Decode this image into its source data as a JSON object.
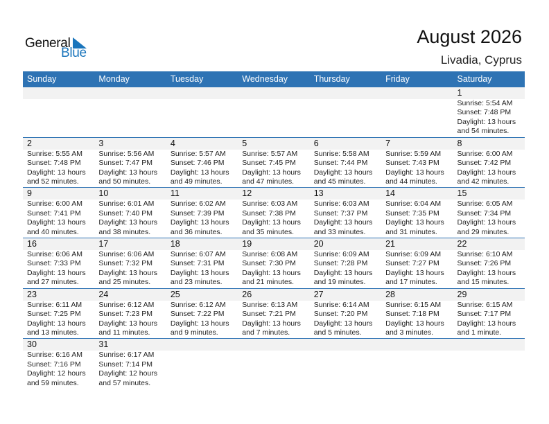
{
  "logo": {
    "line1": "General",
    "line2": "Blue",
    "color": "#1a75bc"
  },
  "header": {
    "title": "August 2026",
    "location": "Livadia, Cyprus"
  },
  "colors": {
    "header_bg": "#2e73b4",
    "day_band": "#f2f2f2"
  },
  "weekdays": [
    "Sunday",
    "Monday",
    "Tuesday",
    "Wednesday",
    "Thursday",
    "Friday",
    "Saturday"
  ],
  "weeks": [
    [
      null,
      null,
      null,
      null,
      null,
      null,
      {
        "day": "1",
        "sunrise": "Sunrise: 5:54 AM",
        "sunset": "Sunset: 7:48 PM",
        "daylight": "Daylight: 13 hours",
        "minutes": "and 54 minutes."
      }
    ],
    [
      {
        "day": "2",
        "sunrise": "Sunrise: 5:55 AM",
        "sunset": "Sunset: 7:48 PM",
        "daylight": "Daylight: 13 hours",
        "minutes": "and 52 minutes."
      },
      {
        "day": "3",
        "sunrise": "Sunrise: 5:56 AM",
        "sunset": "Sunset: 7:47 PM",
        "daylight": "Daylight: 13 hours",
        "minutes": "and 50 minutes."
      },
      {
        "day": "4",
        "sunrise": "Sunrise: 5:57 AM",
        "sunset": "Sunset: 7:46 PM",
        "daylight": "Daylight: 13 hours",
        "minutes": "and 49 minutes."
      },
      {
        "day": "5",
        "sunrise": "Sunrise: 5:57 AM",
        "sunset": "Sunset: 7:45 PM",
        "daylight": "Daylight: 13 hours",
        "minutes": "and 47 minutes."
      },
      {
        "day": "6",
        "sunrise": "Sunrise: 5:58 AM",
        "sunset": "Sunset: 7:44 PM",
        "daylight": "Daylight: 13 hours",
        "minutes": "and 45 minutes."
      },
      {
        "day": "7",
        "sunrise": "Sunrise: 5:59 AM",
        "sunset": "Sunset: 7:43 PM",
        "daylight": "Daylight: 13 hours",
        "minutes": "and 44 minutes."
      },
      {
        "day": "8",
        "sunrise": "Sunrise: 6:00 AM",
        "sunset": "Sunset: 7:42 PM",
        "daylight": "Daylight: 13 hours",
        "minutes": "and 42 minutes."
      }
    ],
    [
      {
        "day": "9",
        "sunrise": "Sunrise: 6:00 AM",
        "sunset": "Sunset: 7:41 PM",
        "daylight": "Daylight: 13 hours",
        "minutes": "and 40 minutes."
      },
      {
        "day": "10",
        "sunrise": "Sunrise: 6:01 AM",
        "sunset": "Sunset: 7:40 PM",
        "daylight": "Daylight: 13 hours",
        "minutes": "and 38 minutes."
      },
      {
        "day": "11",
        "sunrise": "Sunrise: 6:02 AM",
        "sunset": "Sunset: 7:39 PM",
        "daylight": "Daylight: 13 hours",
        "minutes": "and 36 minutes."
      },
      {
        "day": "12",
        "sunrise": "Sunrise: 6:03 AM",
        "sunset": "Sunset: 7:38 PM",
        "daylight": "Daylight: 13 hours",
        "minutes": "and 35 minutes."
      },
      {
        "day": "13",
        "sunrise": "Sunrise: 6:03 AM",
        "sunset": "Sunset: 7:37 PM",
        "daylight": "Daylight: 13 hours",
        "minutes": "and 33 minutes."
      },
      {
        "day": "14",
        "sunrise": "Sunrise: 6:04 AM",
        "sunset": "Sunset: 7:35 PM",
        "daylight": "Daylight: 13 hours",
        "minutes": "and 31 minutes."
      },
      {
        "day": "15",
        "sunrise": "Sunrise: 6:05 AM",
        "sunset": "Sunset: 7:34 PM",
        "daylight": "Daylight: 13 hours",
        "minutes": "and 29 minutes."
      }
    ],
    [
      {
        "day": "16",
        "sunrise": "Sunrise: 6:06 AM",
        "sunset": "Sunset: 7:33 PM",
        "daylight": "Daylight: 13 hours",
        "minutes": "and 27 minutes."
      },
      {
        "day": "17",
        "sunrise": "Sunrise: 6:06 AM",
        "sunset": "Sunset: 7:32 PM",
        "daylight": "Daylight: 13 hours",
        "minutes": "and 25 minutes."
      },
      {
        "day": "18",
        "sunrise": "Sunrise: 6:07 AM",
        "sunset": "Sunset: 7:31 PM",
        "daylight": "Daylight: 13 hours",
        "minutes": "and 23 minutes."
      },
      {
        "day": "19",
        "sunrise": "Sunrise: 6:08 AM",
        "sunset": "Sunset: 7:30 PM",
        "daylight": "Daylight: 13 hours",
        "minutes": "and 21 minutes."
      },
      {
        "day": "20",
        "sunrise": "Sunrise: 6:09 AM",
        "sunset": "Sunset: 7:28 PM",
        "daylight": "Daylight: 13 hours",
        "minutes": "and 19 minutes."
      },
      {
        "day": "21",
        "sunrise": "Sunrise: 6:09 AM",
        "sunset": "Sunset: 7:27 PM",
        "daylight": "Daylight: 13 hours",
        "minutes": "and 17 minutes."
      },
      {
        "day": "22",
        "sunrise": "Sunrise: 6:10 AM",
        "sunset": "Sunset: 7:26 PM",
        "daylight": "Daylight: 13 hours",
        "minutes": "and 15 minutes."
      }
    ],
    [
      {
        "day": "23",
        "sunrise": "Sunrise: 6:11 AM",
        "sunset": "Sunset: 7:25 PM",
        "daylight": "Daylight: 13 hours",
        "minutes": "and 13 minutes."
      },
      {
        "day": "24",
        "sunrise": "Sunrise: 6:12 AM",
        "sunset": "Sunset: 7:23 PM",
        "daylight": "Daylight: 13 hours",
        "minutes": "and 11 minutes."
      },
      {
        "day": "25",
        "sunrise": "Sunrise: 6:12 AM",
        "sunset": "Sunset: 7:22 PM",
        "daylight": "Daylight: 13 hours",
        "minutes": "and 9 minutes."
      },
      {
        "day": "26",
        "sunrise": "Sunrise: 6:13 AM",
        "sunset": "Sunset: 7:21 PM",
        "daylight": "Daylight: 13 hours",
        "minutes": "and 7 minutes."
      },
      {
        "day": "27",
        "sunrise": "Sunrise: 6:14 AM",
        "sunset": "Sunset: 7:20 PM",
        "daylight": "Daylight: 13 hours",
        "minutes": "and 5 minutes."
      },
      {
        "day": "28",
        "sunrise": "Sunrise: 6:15 AM",
        "sunset": "Sunset: 7:18 PM",
        "daylight": "Daylight: 13 hours",
        "minutes": "and 3 minutes."
      },
      {
        "day": "29",
        "sunrise": "Sunrise: 6:15 AM",
        "sunset": "Sunset: 7:17 PM",
        "daylight": "Daylight: 13 hours",
        "minutes": "and 1 minute."
      }
    ],
    [
      {
        "day": "30",
        "sunrise": "Sunrise: 6:16 AM",
        "sunset": "Sunset: 7:16 PM",
        "daylight": "Daylight: 12 hours",
        "minutes": "and 59 minutes."
      },
      {
        "day": "31",
        "sunrise": "Sunrise: 6:17 AM",
        "sunset": "Sunset: 7:14 PM",
        "daylight": "Daylight: 12 hours",
        "minutes": "and 57 minutes."
      },
      null,
      null,
      null,
      null,
      null
    ]
  ]
}
